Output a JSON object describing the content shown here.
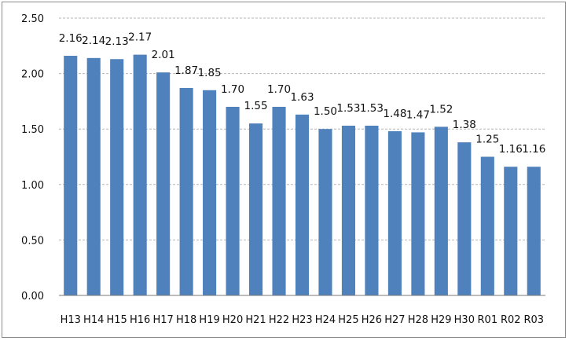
{
  "chart_data": {
    "type": "bar",
    "title": "",
    "xlabel": "",
    "ylabel": "",
    "categories": [
      "H13",
      "H14",
      "H15",
      "H16",
      "H17",
      "H18",
      "H19",
      "H20",
      "H21",
      "H22",
      "H23",
      "H24",
      "H25",
      "H26",
      "H27",
      "H28",
      "H29",
      "H30",
      "R01",
      "R02",
      "R03"
    ],
    "values": [
      2.16,
      2.14,
      2.13,
      2.17,
      2.01,
      1.87,
      1.85,
      1.7,
      1.55,
      1.7,
      1.63,
      1.5,
      1.53,
      1.53,
      1.48,
      1.47,
      1.52,
      1.38,
      1.25,
      1.16,
      1.16
    ],
    "value_labels": [
      "2.16",
      "2.14",
      "2.13",
      "2.17",
      "2.01",
      "1.87",
      "1.85",
      "1.70",
      "1.55",
      "1.70",
      "1.63",
      "1.50",
      "1.53",
      "1.53",
      "1.48",
      "1.47",
      "1.52",
      "1.38",
      "1.25",
      "1.16",
      "1.16"
    ],
    "ylim": [
      0,
      2.5
    ],
    "yticks": [
      "0.00",
      "0.50",
      "1.00",
      "1.50",
      "2.00",
      "2.50"
    ],
    "ytick_values": [
      0,
      0.5,
      1.0,
      1.5,
      2.0,
      2.5
    ],
    "grid": true,
    "bar_color": "#4f81bd"
  }
}
